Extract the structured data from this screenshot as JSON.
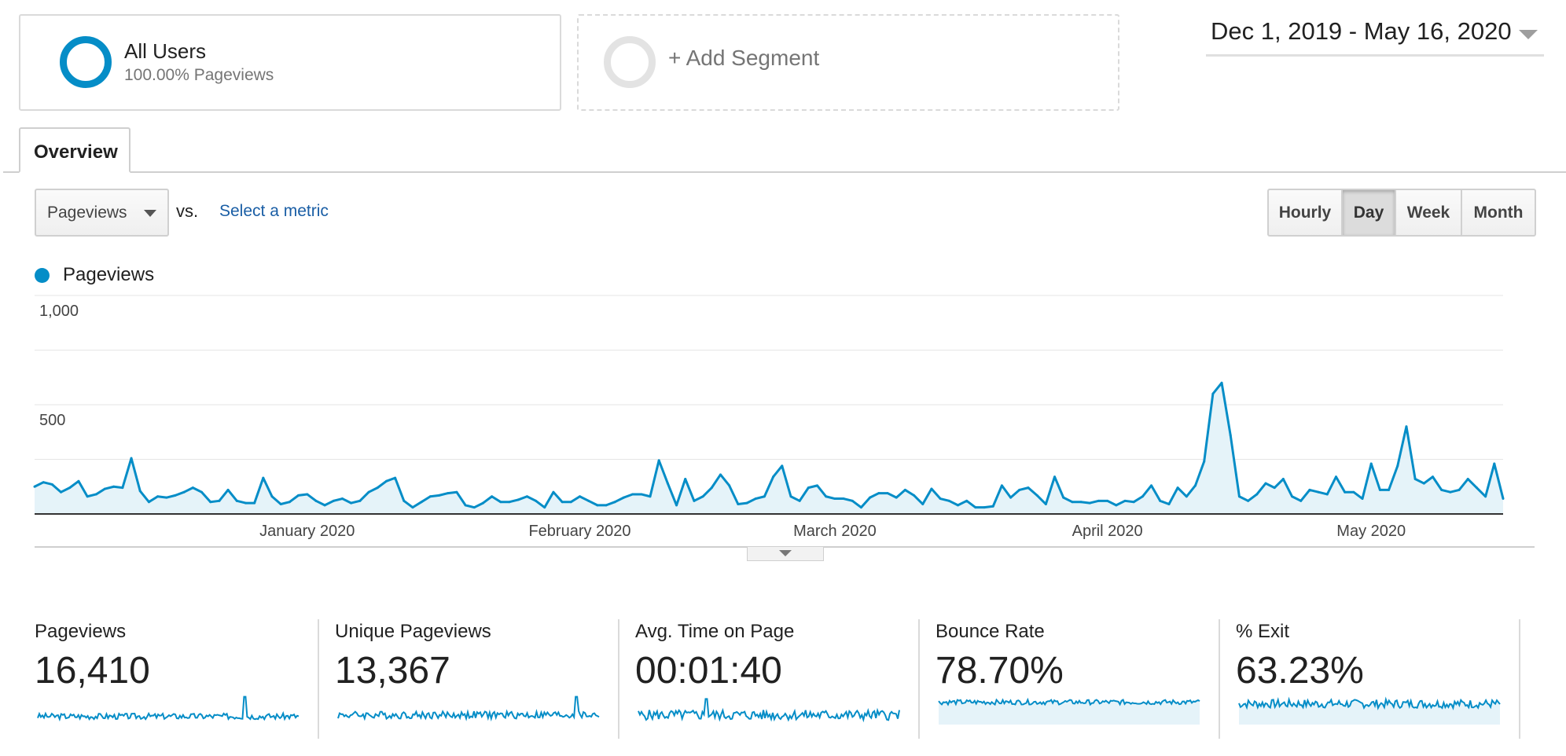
{
  "segments": {
    "all_users": {
      "title": "All Users",
      "subtitle": "100.00% Pageviews"
    },
    "add_segment": {
      "label": "+ Add Segment"
    }
  },
  "date_range": "Dec 1, 2019 - May 16, 2020",
  "tabs": [
    {
      "label": "Overview"
    }
  ],
  "controls": {
    "metric": "Pageviews",
    "vs": "vs.",
    "select_metric": "Select a metric",
    "granularity": [
      "Hourly",
      "Day",
      "Week",
      "Month"
    ],
    "granularity_selected": "Day"
  },
  "legend": {
    "label": "Pageviews",
    "color": "#058dc7"
  },
  "chart_data": {
    "type": "area",
    "series": [
      {
        "name": "Pageviews",
        "color": "#058dc7"
      }
    ],
    "x_start": "2019-12-01",
    "x_end": "2020-05-16",
    "x_tick_labels": [
      "January 2020",
      "February 2020",
      "March 2020",
      "April 2020",
      "May 2020"
    ],
    "y_tick_labels": [
      "1,000",
      "500"
    ],
    "ylim": [
      0,
      1000
    ],
    "grid": true,
    "points": [
      [
        "2019-12-01",
        125
      ],
      [
        "2019-12-02",
        145
      ],
      [
        "2019-12-03",
        135
      ],
      [
        "2019-12-04",
        100
      ],
      [
        "2019-12-05",
        120
      ],
      [
        "2019-12-06",
        150
      ],
      [
        "2019-12-07",
        80
      ],
      [
        "2019-12-08",
        90
      ],
      [
        "2019-12-09",
        115
      ],
      [
        "2019-12-10",
        125
      ],
      [
        "2019-12-11",
        120
      ],
      [
        "2019-12-12",
        255
      ],
      [
        "2019-12-13",
        105
      ],
      [
        "2019-12-14",
        55
      ],
      [
        "2019-12-15",
        80
      ],
      [
        "2019-12-16",
        75
      ],
      [
        "2019-12-17",
        85
      ],
      [
        "2019-12-18",
        100
      ],
      [
        "2019-12-19",
        120
      ],
      [
        "2019-12-20",
        100
      ],
      [
        "2019-12-21",
        55
      ],
      [
        "2019-12-22",
        60
      ],
      [
        "2019-12-23",
        110
      ],
      [
        "2019-12-24",
        60
      ],
      [
        "2019-12-25",
        50
      ],
      [
        "2019-12-26",
        50
      ],
      [
        "2019-12-27",
        165
      ],
      [
        "2019-12-28",
        80
      ],
      [
        "2019-12-29",
        45
      ],
      [
        "2019-12-30",
        55
      ],
      [
        "2019-12-31",
        85
      ],
      [
        "2020-01-01",
        90
      ],
      [
        "2020-01-02",
        60
      ],
      [
        "2020-01-03",
        40
      ],
      [
        "2020-01-04",
        60
      ],
      [
        "2020-01-05",
        70
      ],
      [
        "2020-01-06",
        50
      ],
      [
        "2020-01-07",
        60
      ],
      [
        "2020-01-08",
        100
      ],
      [
        "2020-01-09",
        120
      ],
      [
        "2020-01-10",
        150
      ],
      [
        "2020-01-11",
        165
      ],
      [
        "2020-01-12",
        60
      ],
      [
        "2020-01-13",
        30
      ],
      [
        "2020-01-14",
        55
      ],
      [
        "2020-01-15",
        80
      ],
      [
        "2020-01-16",
        85
      ],
      [
        "2020-01-17",
        95
      ],
      [
        "2020-01-18",
        100
      ],
      [
        "2020-01-19",
        40
      ],
      [
        "2020-01-20",
        30
      ],
      [
        "2020-01-21",
        50
      ],
      [
        "2020-01-22",
        80
      ],
      [
        "2020-01-23",
        55
      ],
      [
        "2020-01-24",
        55
      ],
      [
        "2020-01-25",
        65
      ],
      [
        "2020-01-26",
        80
      ],
      [
        "2020-01-27",
        60
      ],
      [
        "2020-01-28",
        30
      ],
      [
        "2020-01-29",
        100
      ],
      [
        "2020-01-30",
        55
      ],
      [
        "2020-01-31",
        55
      ],
      [
        "2020-02-01",
        80
      ],
      [
        "2020-02-02",
        60
      ],
      [
        "2020-02-03",
        40
      ],
      [
        "2020-02-04",
        40
      ],
      [
        "2020-02-05",
        55
      ],
      [
        "2020-02-06",
        75
      ],
      [
        "2020-02-07",
        90
      ],
      [
        "2020-02-08",
        90
      ],
      [
        "2020-02-09",
        80
      ],
      [
        "2020-02-10",
        245
      ],
      [
        "2020-02-11",
        140
      ],
      [
        "2020-02-12",
        40
      ],
      [
        "2020-02-13",
        160
      ],
      [
        "2020-02-14",
        60
      ],
      [
        "2020-02-15",
        80
      ],
      [
        "2020-02-16",
        120
      ],
      [
        "2020-02-17",
        180
      ],
      [
        "2020-02-18",
        130
      ],
      [
        "2020-02-19",
        45
      ],
      [
        "2020-02-20",
        50
      ],
      [
        "2020-02-21",
        70
      ],
      [
        "2020-02-22",
        80
      ],
      [
        "2020-02-23",
        170
      ],
      [
        "2020-02-24",
        220
      ],
      [
        "2020-02-25",
        80
      ],
      [
        "2020-02-26",
        60
      ],
      [
        "2020-02-27",
        120
      ],
      [
        "2020-02-28",
        130
      ],
      [
        "2020-02-29",
        80
      ],
      [
        "2020-03-01",
        70
      ],
      [
        "2020-03-02",
        70
      ],
      [
        "2020-03-03",
        60
      ],
      [
        "2020-03-04",
        30
      ],
      [
        "2020-03-05",
        75
      ],
      [
        "2020-03-06",
        95
      ],
      [
        "2020-03-07",
        95
      ],
      [
        "2020-03-08",
        75
      ],
      [
        "2020-03-09",
        110
      ],
      [
        "2020-03-10",
        85
      ],
      [
        "2020-03-11",
        45
      ],
      [
        "2020-03-12",
        115
      ],
      [
        "2020-03-13",
        70
      ],
      [
        "2020-03-14",
        60
      ],
      [
        "2020-03-15",
        40
      ],
      [
        "2020-03-16",
        60
      ],
      [
        "2020-03-17",
        30
      ],
      [
        "2020-03-18",
        30
      ],
      [
        "2020-03-19",
        35
      ],
      [
        "2020-03-20",
        130
      ],
      [
        "2020-03-21",
        75
      ],
      [
        "2020-03-22",
        110
      ],
      [
        "2020-03-23",
        120
      ],
      [
        "2020-03-24",
        85
      ],
      [
        "2020-03-25",
        45
      ],
      [
        "2020-03-26",
        170
      ],
      [
        "2020-03-27",
        75
      ],
      [
        "2020-03-28",
        55
      ],
      [
        "2020-03-29",
        55
      ],
      [
        "2020-03-30",
        50
      ],
      [
        "2020-03-31",
        60
      ],
      [
        "2020-04-01",
        60
      ],
      [
        "2020-04-02",
        40
      ],
      [
        "2020-04-03",
        60
      ],
      [
        "2020-04-04",
        55
      ],
      [
        "2020-04-05",
        80
      ],
      [
        "2020-04-06",
        130
      ],
      [
        "2020-04-07",
        60
      ],
      [
        "2020-04-08",
        45
      ],
      [
        "2020-04-09",
        120
      ],
      [
        "2020-04-10",
        80
      ],
      [
        "2020-04-11",
        130
      ],
      [
        "2020-04-12",
        240
      ],
      [
        "2020-04-13",
        550
      ],
      [
        "2020-04-14",
        600
      ],
      [
        "2020-04-15",
        360
      ],
      [
        "2020-04-16",
        80
      ],
      [
        "2020-04-17",
        60
      ],
      [
        "2020-04-18",
        90
      ],
      [
        "2020-04-19",
        140
      ],
      [
        "2020-04-20",
        120
      ],
      [
        "2020-04-21",
        160
      ],
      [
        "2020-04-22",
        80
      ],
      [
        "2020-04-23",
        60
      ],
      [
        "2020-04-24",
        110
      ],
      [
        "2020-04-25",
        100
      ],
      [
        "2020-04-26",
        90
      ],
      [
        "2020-04-27",
        170
      ],
      [
        "2020-04-28",
        100
      ],
      [
        "2020-04-29",
        100
      ],
      [
        "2020-04-30",
        70
      ],
      [
        "2020-05-01",
        230
      ],
      [
        "2020-05-02",
        110
      ],
      [
        "2020-05-03",
        110
      ],
      [
        "2020-05-04",
        220
      ],
      [
        "2020-05-05",
        400
      ],
      [
        "2020-05-06",
        160
      ],
      [
        "2020-05-07",
        140
      ],
      [
        "2020-05-08",
        170
      ],
      [
        "2020-05-09",
        110
      ],
      [
        "2020-05-10",
        100
      ],
      [
        "2020-05-11",
        110
      ],
      [
        "2020-05-12",
        160
      ],
      [
        "2020-05-13",
        120
      ],
      [
        "2020-05-14",
        80
      ],
      [
        "2020-05-15",
        230
      ],
      [
        "2020-05-16",
        70
      ]
    ]
  },
  "scorecards": [
    {
      "label": "Pageviews",
      "value": "16,410"
    },
    {
      "label": "Unique Pageviews",
      "value": "13,367"
    },
    {
      "label": "Avg. Time on Page",
      "value": "00:01:40"
    },
    {
      "label": "Bounce Rate",
      "value": "78.70%"
    },
    {
      "label": "% Exit",
      "value": "63.23%"
    }
  ]
}
